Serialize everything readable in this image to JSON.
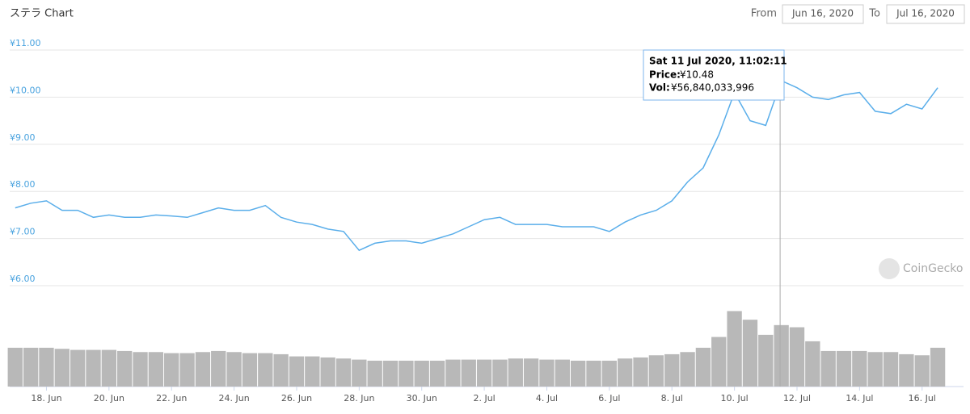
{
  "chart_data": {
    "type": "line",
    "title": "ステラ Chart",
    "date_range": {
      "from_label": "From",
      "from": "Jun 16, 2020",
      "to_label": "To",
      "to": "Jul 16, 2020"
    },
    "watermark": "CoinGecko",
    "color": "#5aaeea",
    "volume_color": "#b8b8b8",
    "grid": true,
    "xlim": [
      "2020-06-16T19:48",
      "2020-07-17T07:48"
    ],
    "xticks": [
      {
        "value": "2020-06-18T00:00",
        "label": "18. Jun"
      },
      {
        "value": "2020-06-20T00:00",
        "label": "20. Jun"
      },
      {
        "value": "2020-06-22T00:00",
        "label": "22. Jun"
      },
      {
        "value": "2020-06-24T00:00",
        "label": "24. Jun"
      },
      {
        "value": "2020-06-26T00:00",
        "label": "26. Jun"
      },
      {
        "value": "2020-06-28T00:00",
        "label": "28. Jun"
      },
      {
        "value": "2020-06-30T00:00",
        "label": "30. Jun"
      },
      {
        "value": "2020-07-02T00:00",
        "label": "2. Jul"
      },
      {
        "value": "2020-07-04T00:00",
        "label": "4. Jul"
      },
      {
        "value": "2020-07-06T00:00",
        "label": "6. Jul"
      },
      {
        "value": "2020-07-08T00:00",
        "label": "8. Jul"
      },
      {
        "value": "2020-07-10T00:00",
        "label": "10. Jul"
      },
      {
        "value": "2020-07-12T00:00",
        "label": "12. Jul"
      },
      {
        "value": "2020-07-14T00:00",
        "label": "14. Jul"
      },
      {
        "value": "2020-07-16T00:00",
        "label": "16. Jul"
      }
    ],
    "ylim": [
      6,
      11
    ],
    "yticks": [
      {
        "value": 6,
        "label": "¥6.00"
      },
      {
        "value": 7,
        "label": "¥7.00"
      },
      {
        "value": 8,
        "label": "¥8.00"
      },
      {
        "value": 9,
        "label": "¥9.00"
      },
      {
        "value": 10,
        "label": "¥10.00"
      },
      {
        "value": 11,
        "label": "¥11.00"
      }
    ],
    "x": [
      "2020-06-17T00:00",
      "2020-06-17T12:00",
      "2020-06-18T00:00",
      "2020-06-18T12:00",
      "2020-06-19T00:00",
      "2020-06-19T12:00",
      "2020-06-20T00:00",
      "2020-06-20T12:00",
      "2020-06-21T00:00",
      "2020-06-21T12:00",
      "2020-06-22T00:00",
      "2020-06-22T12:00",
      "2020-06-23T00:00",
      "2020-06-23T12:00",
      "2020-06-24T00:00",
      "2020-06-24T12:00",
      "2020-06-25T00:00",
      "2020-06-25T12:00",
      "2020-06-26T00:00",
      "2020-06-26T12:00",
      "2020-06-27T00:00",
      "2020-06-27T12:00",
      "2020-06-28T00:00",
      "2020-06-28T12:00",
      "2020-06-29T00:00",
      "2020-06-29T12:00",
      "2020-06-30T00:00",
      "2020-06-30T12:00",
      "2020-07-01T00:00",
      "2020-07-01T12:00",
      "2020-07-02T00:00",
      "2020-07-02T12:00",
      "2020-07-03T00:00",
      "2020-07-03T12:00",
      "2020-07-04T00:00",
      "2020-07-04T12:00",
      "2020-07-05T00:00",
      "2020-07-05T12:00",
      "2020-07-06T00:00",
      "2020-07-06T12:00",
      "2020-07-07T00:00",
      "2020-07-07T12:00",
      "2020-07-08T00:00",
      "2020-07-08T12:00",
      "2020-07-09T00:00",
      "2020-07-09T12:00",
      "2020-07-10T00:00",
      "2020-07-10T12:00",
      "2020-07-11T00:00",
      "2020-07-11T12:00",
      "2020-07-12T00:00",
      "2020-07-12T12:00",
      "2020-07-13T00:00",
      "2020-07-13T12:00",
      "2020-07-14T00:00",
      "2020-07-14T12:00",
      "2020-07-15T00:00",
      "2020-07-15T12:00",
      "2020-07-16T00:00",
      "2020-07-16T12:00"
    ],
    "values": [
      7.65,
      7.75,
      7.8,
      7.6,
      7.6,
      7.45,
      7.5,
      7.45,
      7.45,
      7.5,
      7.48,
      7.45,
      7.55,
      7.65,
      7.6,
      7.6,
      7.7,
      7.45,
      7.35,
      7.3,
      7.2,
      7.15,
      6.75,
      6.9,
      6.95,
      6.95,
      6.9,
      7.0,
      7.1,
      7.25,
      7.4,
      7.45,
      7.3,
      7.3,
      7.3,
      7.25,
      7.25,
      7.25,
      7.15,
      7.35,
      7.5,
      7.6,
      7.8,
      8.2,
      8.5,
      9.2,
      10.1,
      9.5,
      9.4,
      10.35,
      10.2,
      10.0,
      9.95,
      10.05,
      10.1,
      9.7,
      9.65,
      9.85,
      9.75,
      10.2
    ],
    "volumes": [
      36000000000,
      36000000000,
      36000000000,
      35000000000,
      34000000000,
      34000000000,
      34000000000,
      33000000000,
      32000000000,
      32000000000,
      31000000000,
      31000000000,
      32000000000,
      33000000000,
      32000000000,
      31000000000,
      31000000000,
      30000000000,
      28000000000,
      28000000000,
      27000000000,
      26000000000,
      25000000000,
      24000000000,
      24000000000,
      24000000000,
      24000000000,
      24000000000,
      25000000000,
      25000000000,
      25000000000,
      25000000000,
      26000000000,
      26000000000,
      25000000000,
      25000000000,
      24000000000,
      24000000000,
      24000000000,
      26000000000,
      27000000000,
      29000000000,
      30000000000,
      32000000000,
      36000000000,
      46000000000,
      70000000000,
      62000000000,
      48000000000,
      57000000000,
      55000000000,
      42000000000,
      33000000000,
      33000000000,
      33000000000,
      32000000000,
      32000000000,
      30000000000,
      29000000000,
      36000000000
    ],
    "tooltip": {
      "title": "Sat 11 Jul 2020, 11:02:11",
      "x": "2020-07-11T11:02:11",
      "price_caption": "Price:",
      "price": 10.48,
      "price_label": "¥10.48",
      "volume_caption": "Vol:",
      "volume": 56840033996,
      "volume_label": "¥56,840,033,996"
    }
  }
}
